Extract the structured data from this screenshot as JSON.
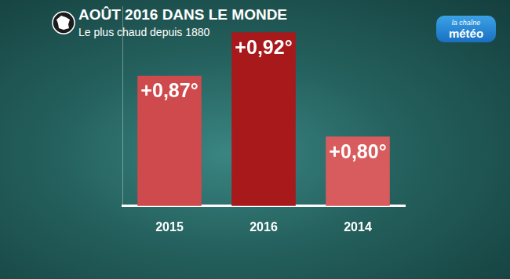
{
  "chart_data": {
    "type": "bar",
    "title": "AOÛT 2016 DANS LE MONDE",
    "subtitle": "Le plus chaud depuis 1880",
    "logo": "la chaîne météo",
    "categories": [
      "2015",
      "2016",
      "2014"
    ],
    "values": [
      0.87,
      0.92,
      0.8
    ],
    "value_labels": [
      "+0,87°",
      "+0,92°",
      "+0,80°"
    ],
    "ranks": [
      2,
      1,
      3
    ],
    "colors": [
      "#cf4a4c",
      "#a8191c",
      "#d85c5e"
    ],
    "ylim": [
      0.72,
      0.95
    ],
    "grid": false,
    "data_labels": true,
    "tick_labels": "x"
  }
}
